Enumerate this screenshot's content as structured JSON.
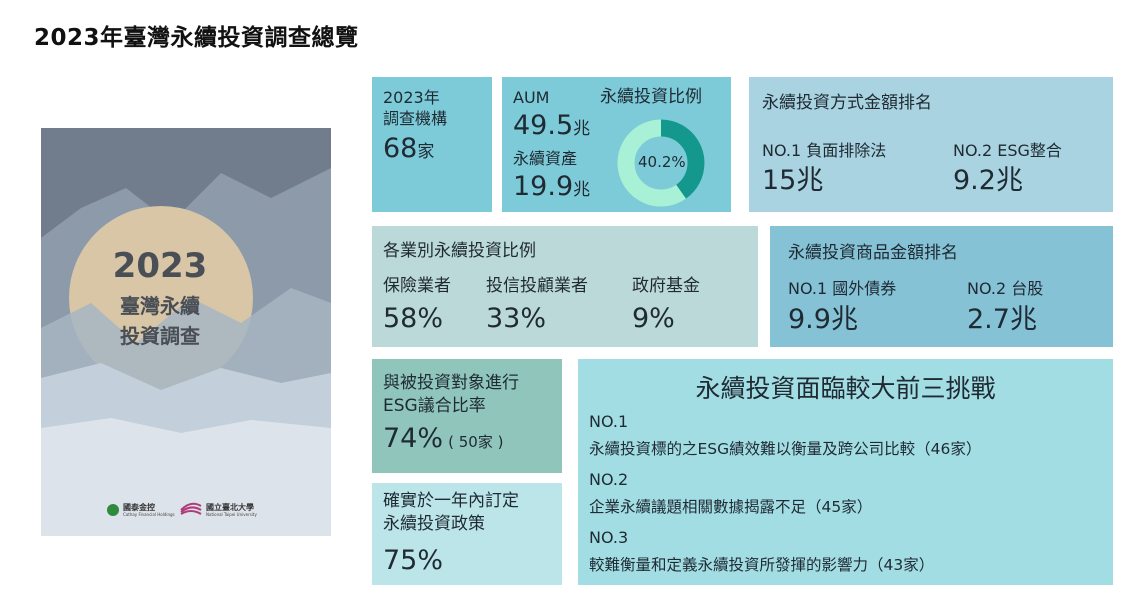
{
  "page_title": "2023年臺灣永續投資調查總覽",
  "cover": {
    "year": "2023",
    "line2": "臺灣永續",
    "line3": "投資調查",
    "logo1_name": "國泰金控",
    "logo1_sub": "Cathay Financial Holdings",
    "logo2_name": "國立臺北大學",
    "logo2_sub": "National Taipei University",
    "colors": {
      "sky": "#717d8c",
      "circle": "#d8c6a6",
      "mountain_dark": "#8d9aaa",
      "mountain_mid": "#a7b5c3",
      "mountain_light": "#c3cfdb",
      "ground": "#dde3ea"
    }
  },
  "institutions": {
    "label1": "2023年",
    "label2": "調查機構",
    "value": "68",
    "unit": "家"
  },
  "aum": {
    "aum_label": "AUM",
    "aum_value": "49.5",
    "aum_unit": "兆",
    "sustainable_label": "永續資產",
    "sustainable_value": "19.9",
    "sustainable_unit": "兆",
    "ratio_label": "永續投資比例",
    "ratio_text": "40.2%",
    "ratio_fraction": 0.402,
    "colors": {
      "filled": "#14988e",
      "rest": "#a8f1d6"
    }
  },
  "method_ranking": {
    "title": "永續投資方式金額排名",
    "item1_label": "NO.1 負面排除法",
    "item1_value": "15兆",
    "item2_label": "NO.2 ESG整合",
    "item2_value": "9.2兆"
  },
  "industry_ratio": {
    "title": "各業別永續投資比例",
    "items": [
      {
        "label": "保險業者",
        "value": "58%"
      },
      {
        "label": "投信投顧業者",
        "value": "33%"
      },
      {
        "label": "政府基金",
        "value": "9%"
      }
    ]
  },
  "product_ranking": {
    "title": "永續投資商品金額排名",
    "item1_label": "NO.1 國外債券",
    "item1_value": "9.9兆",
    "item2_label": "NO.2 台股",
    "item2_value": "2.7兆"
  },
  "engagement": {
    "line1": "與被投資對象進行",
    "line2": "ESG議合比率",
    "value": "74%",
    "note": "( 50家 )"
  },
  "policy": {
    "line1": "確實於一年內訂定",
    "line2": "永續投資政策",
    "value": "75%"
  },
  "challenges": {
    "title": "永續投資面臨較大前三挑戰",
    "items": [
      {
        "rank": "NO.1",
        "text": "永續投資標的之ESG績效難以衡量及跨公司比較（46家）"
      },
      {
        "rank": "NO.2",
        "text": "企業永續議題相關數據揭露不足（45家）"
      },
      {
        "rank": "NO.3",
        "text": "較難衡量和定義永續投資所發揮的影響力（43家）"
      }
    ]
  }
}
